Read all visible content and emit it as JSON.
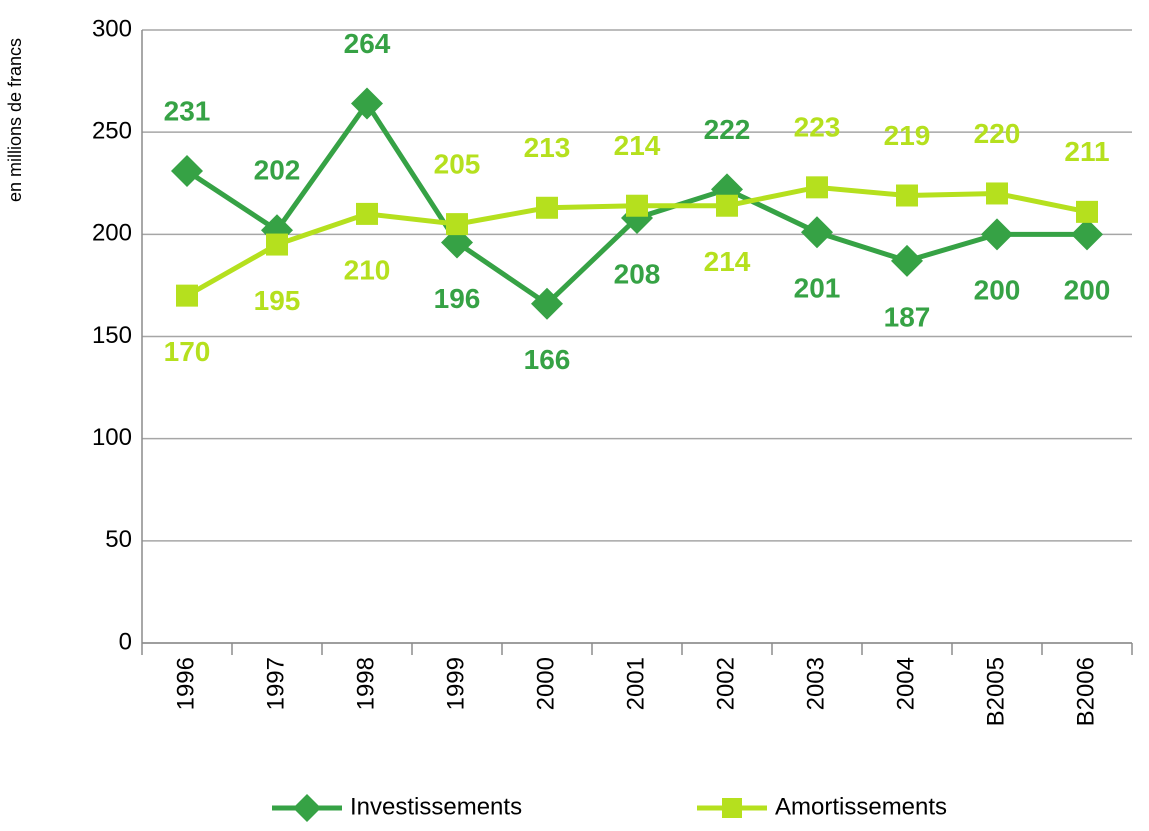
{
  "chart_data": {
    "type": "line",
    "y_label": "en millions de francs",
    "categories": [
      "1996",
      "1997",
      "1998",
      "1999",
      "2000",
      "2001",
      "2002",
      "2003",
      "2004",
      "B2005",
      "B2006"
    ],
    "series": [
      {
        "name": "Investissements",
        "color": "#36a245",
        "marker": "diamond",
        "values": [
          231,
          202,
          264,
          196,
          166,
          208,
          222,
          201,
          187,
          200,
          200
        ]
      },
      {
        "name": "Amortissements",
        "color": "#b5e01e",
        "marker": "square",
        "values": [
          170,
          195,
          210,
          205,
          213,
          214,
          214,
          223,
          219,
          220,
          211
        ]
      }
    ],
    "ylim": [
      0,
      300
    ],
    "yticks": [
      0,
      50,
      100,
      150,
      200,
      250,
      300
    ],
    "grid": true,
    "legend": "bottom"
  }
}
